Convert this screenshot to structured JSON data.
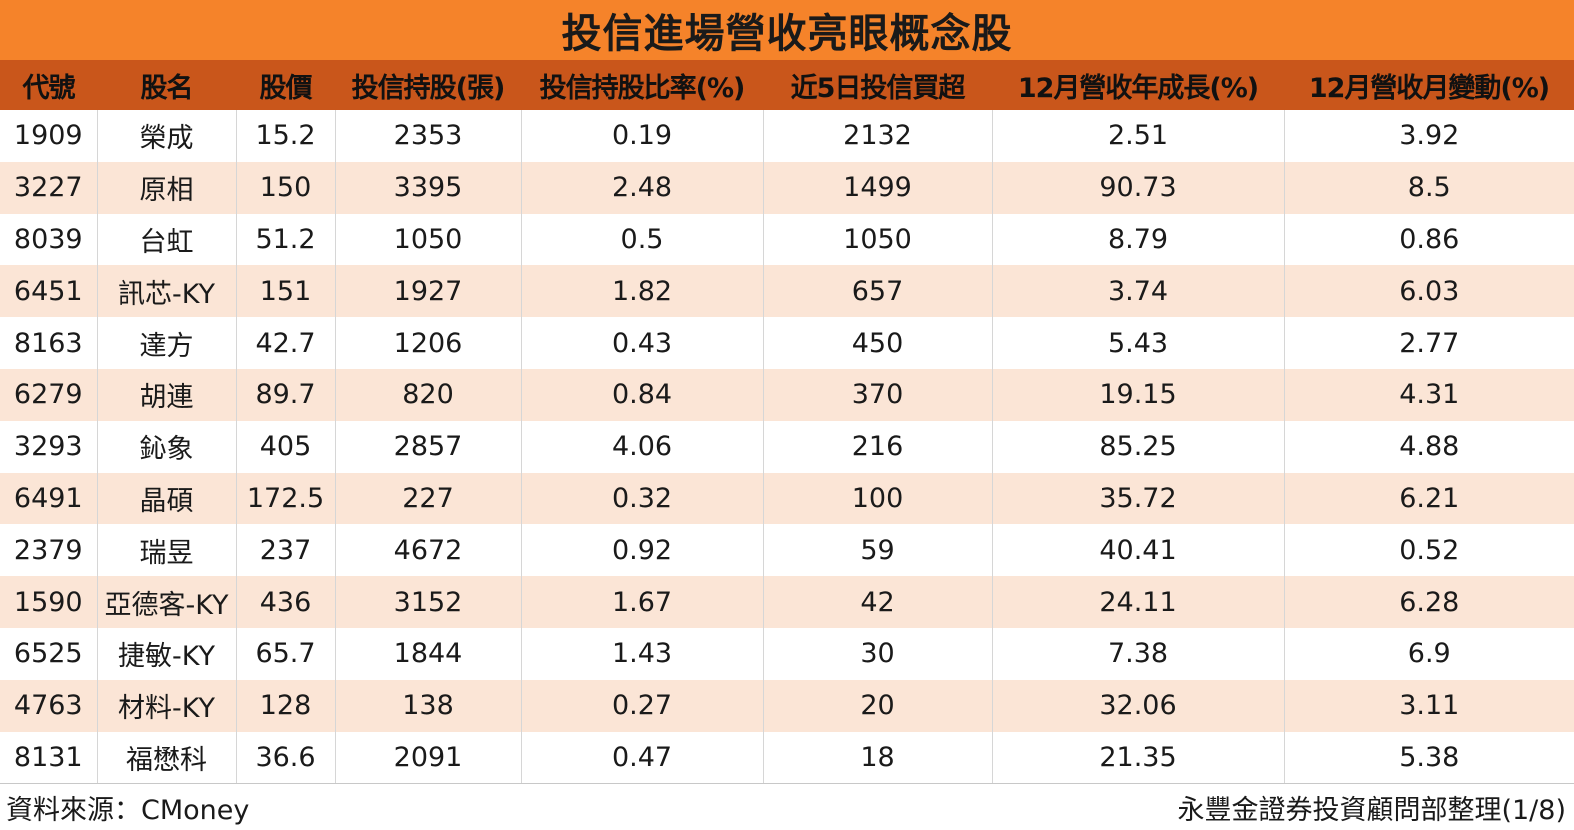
{
  "title": "投信進場營收亮眼概念股",
  "table": {
    "headers": [
      "代號",
      "股名",
      "股價",
      "投信持股(張)",
      "投信持股比率(%)",
      "近5日投信買超",
      "12月營收年成長(%)",
      "12月營收月變動(%)"
    ],
    "rows": [
      [
        "1909",
        "榮成",
        "15.2",
        "2353",
        "0.19",
        "2132",
        "2.51",
        "3.92"
      ],
      [
        "3227",
        "原相",
        "150",
        "3395",
        "2.48",
        "1499",
        "90.73",
        "8.5"
      ],
      [
        "8039",
        "台虹",
        "51.2",
        "1050",
        "0.5",
        "1050",
        "8.79",
        "0.86"
      ],
      [
        "6451",
        "訊芯-KY",
        "151",
        "1927",
        "1.82",
        "657",
        "3.74",
        "6.03"
      ],
      [
        "8163",
        "達方",
        "42.7",
        "1206",
        "0.43",
        "450",
        "5.43",
        "2.77"
      ],
      [
        "6279",
        "胡連",
        "89.7",
        "820",
        "0.84",
        "370",
        "19.15",
        "4.31"
      ],
      [
        "3293",
        "鈊象",
        "405",
        "2857",
        "4.06",
        "216",
        "85.25",
        "4.88"
      ],
      [
        "6491",
        "晶碩",
        "172.5",
        "227",
        "0.32",
        "100",
        "35.72",
        "6.21"
      ],
      [
        "2379",
        "瑞昱",
        "237",
        "4672",
        "0.92",
        "59",
        "40.41",
        "0.52"
      ],
      [
        "1590",
        "亞德客-KY",
        "436",
        "3152",
        "1.67",
        "42",
        "24.11",
        "6.28"
      ],
      [
        "6525",
        "捷敏-KY",
        "65.7",
        "1844",
        "1.43",
        "30",
        "7.38",
        "6.9"
      ],
      [
        "4763",
        "材料-KY",
        "128",
        "138",
        "0.27",
        "20",
        "32.06",
        "3.11"
      ],
      [
        "8131",
        "福懋科",
        "36.6",
        "2091",
        "0.47",
        "18",
        "21.35",
        "5.38"
      ]
    ]
  },
  "footer": {
    "source": "資料來源：CMoney",
    "credit": "永豐金證券投資顧問部整理(1/8)"
  },
  "colors": {
    "title_bg": "#f5832a",
    "header_bg": "#c9561b",
    "stripe_bg": "#fbe5d6"
  }
}
